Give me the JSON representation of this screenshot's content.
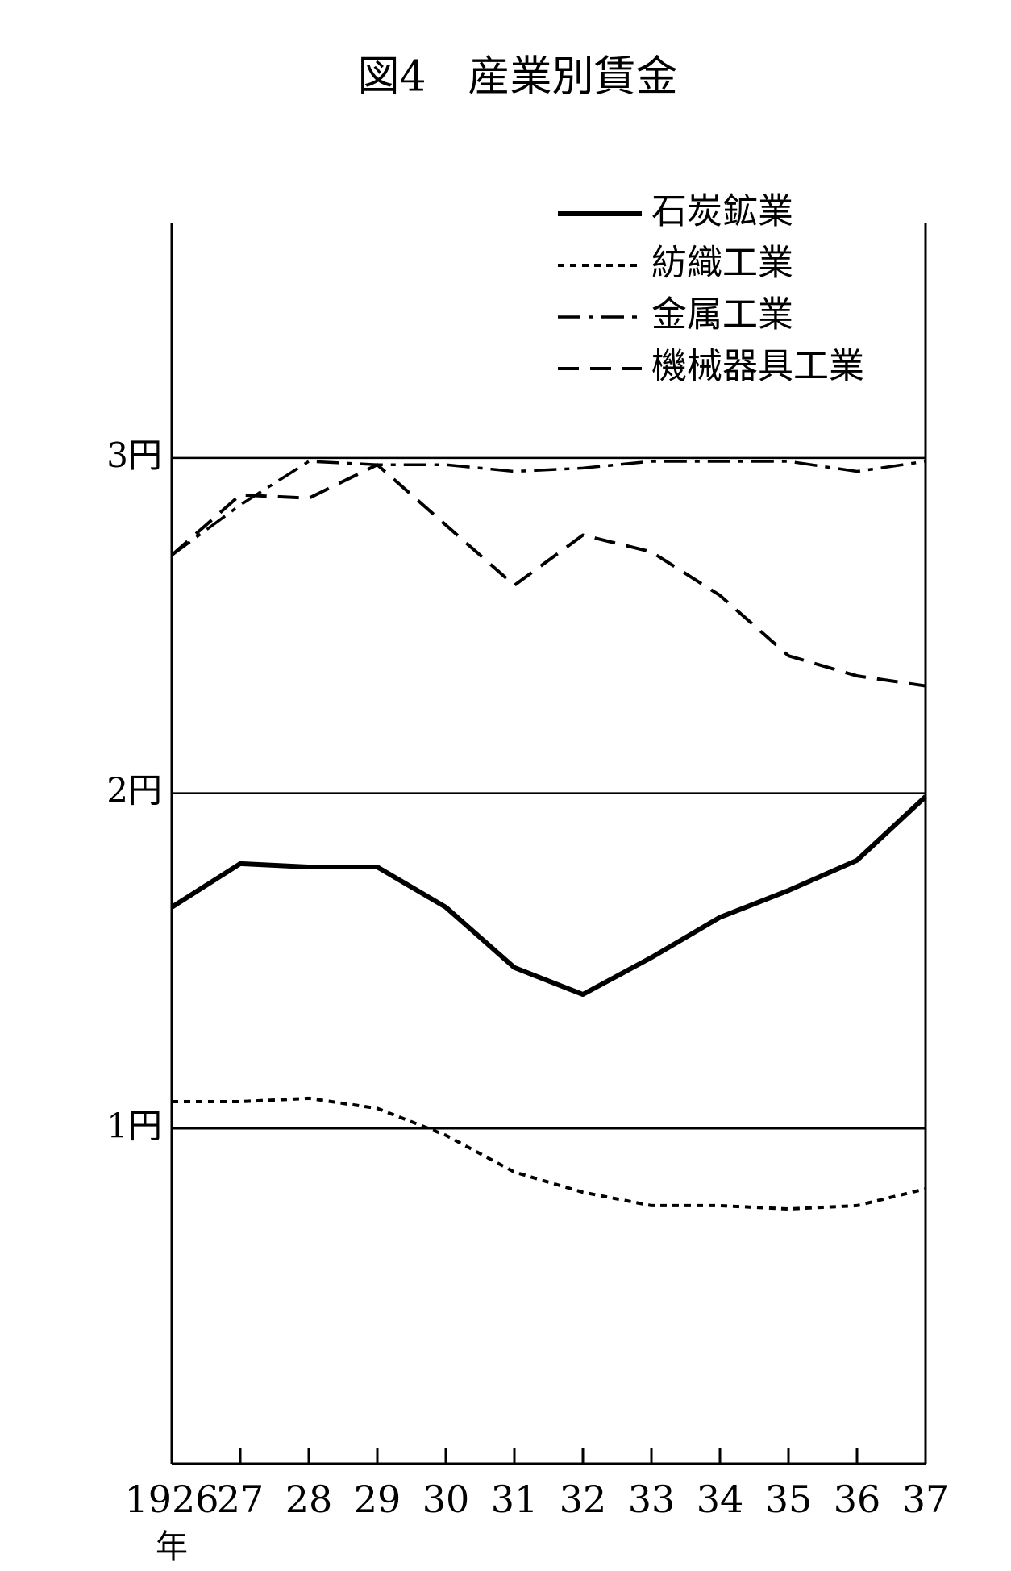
{
  "chart_data": {
    "type": "line",
    "title": "図4　産業別賃金",
    "categories": [
      "1926",
      "27",
      "28",
      "29",
      "30",
      "31",
      "32",
      "33",
      "34",
      "35",
      "36",
      "37"
    ],
    "x_label": "年",
    "series": [
      {
        "name": "石炭鉱業",
        "color": "#000000",
        "dash": "solid",
        "values": [
          1.66,
          1.79,
          1.78,
          1.78,
          1.66,
          1.48,
          1.4,
          1.51,
          1.63,
          1.71,
          1.8,
          1.99
        ]
      },
      {
        "name": "紡織工業",
        "color": "#000000",
        "dash": "dotted",
        "values": [
          1.08,
          1.08,
          1.09,
          1.06,
          0.98,
          0.87,
          0.81,
          0.77,
          0.77,
          0.76,
          0.77,
          0.82
        ]
      },
      {
        "name": "金属工業",
        "color": "#000000",
        "dash": "dashdot",
        "values": [
          2.71,
          2.86,
          2.99,
          2.98,
          2.98,
          2.96,
          2.97,
          2.99,
          2.99,
          2.99,
          2.96,
          2.99
        ]
      },
      {
        "name": "機械器具工業",
        "color": "#000000",
        "dash": "dashed",
        "values": [
          2.71,
          2.89,
          2.88,
          2.98,
          2.8,
          2.62,
          2.77,
          2.72,
          2.59,
          2.41,
          2.35,
          2.32
        ]
      }
    ],
    "ylim": [
      0,
      3.7
    ],
    "yticks": [
      {
        "value": 1,
        "label": "1円"
      },
      {
        "value": 2,
        "label": "2円"
      },
      {
        "value": 3,
        "label": "3円"
      }
    ],
    "grid": true,
    "legend": "top-right"
  }
}
